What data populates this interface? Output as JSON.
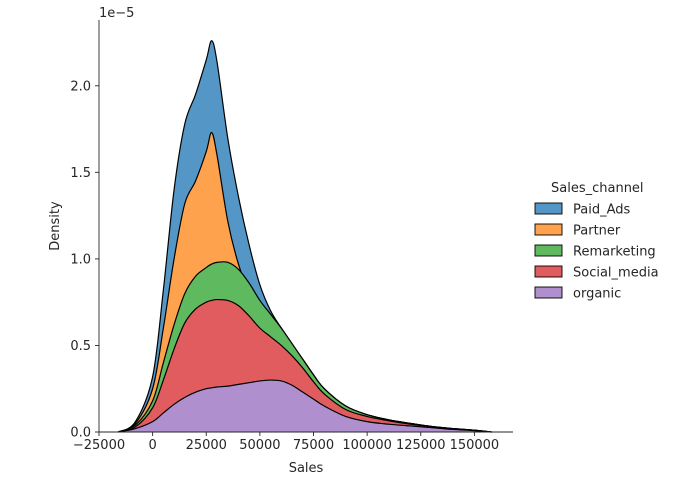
{
  "chart_data": {
    "type": "area",
    "stacked": true,
    "title": "",
    "xlabel": "Sales",
    "ylabel": "Density",
    "y_offset_label": "1e−5",
    "xlim": [
      -25000,
      168000
    ],
    "ylim": [
      0,
      2.38
    ],
    "xticks": [
      -25000,
      0,
      25000,
      50000,
      75000,
      100000,
      125000,
      150000
    ],
    "xtick_labels": [
      "−25000",
      "0",
      "25000",
      "50000",
      "75000",
      "100000",
      "125000",
      "150000"
    ],
    "yticks": [
      0.0,
      0.5,
      1.0,
      1.5,
      2.0
    ],
    "ytick_labels": [
      "0.0",
      "0.5",
      "1.0",
      "1.5",
      "2.0"
    ],
    "grid": false,
    "legend": {
      "title": "Sales_channel",
      "placement": "center-right",
      "entries": [
        "Paid_Ads",
        "Partner",
        "Remarketing",
        "Social_media",
        "organic"
      ]
    },
    "x": [
      -16000,
      -8000,
      0,
      5000,
      10000,
      15000,
      20000,
      25000,
      27500,
      30000,
      35000,
      40000,
      45000,
      50000,
      55000,
      60000,
      65000,
      70000,
      75000,
      80000,
      90000,
      100000,
      110000,
      120000,
      130000,
      140000,
      150000,
      158000
    ],
    "series": [
      {
        "name": "organic",
        "color": "#b08fcf",
        "cumulative": [
          0.0,
          0.02,
          0.06,
          0.11,
          0.16,
          0.2,
          0.23,
          0.25,
          0.255,
          0.26,
          0.265,
          0.275,
          0.285,
          0.295,
          0.3,
          0.295,
          0.27,
          0.23,
          0.19,
          0.15,
          0.09,
          0.06,
          0.045,
          0.035,
          0.025,
          0.015,
          0.008,
          0.0
        ]
      },
      {
        "name": "Social_media",
        "color": "#e05c5e",
        "cumulative": [
          0.0,
          0.03,
          0.14,
          0.3,
          0.48,
          0.63,
          0.71,
          0.75,
          0.76,
          0.765,
          0.76,
          0.73,
          0.67,
          0.6,
          0.55,
          0.5,
          0.44,
          0.37,
          0.29,
          0.22,
          0.13,
          0.09,
          0.065,
          0.045,
          0.03,
          0.018,
          0.01,
          0.0
        ]
      },
      {
        "name": "Remarketing",
        "color": "#5fb95f",
        "cumulative": [
          0.0,
          0.04,
          0.18,
          0.4,
          0.62,
          0.8,
          0.9,
          0.95,
          0.97,
          0.98,
          0.98,
          0.94,
          0.86,
          0.76,
          0.68,
          0.6,
          0.51,
          0.42,
          0.33,
          0.25,
          0.15,
          0.1,
          0.07,
          0.05,
          0.032,
          0.02,
          0.01,
          0.0
        ]
      },
      {
        "name": "Partner",
        "color": "#ffa24d",
        "cumulative": [
          0.0,
          0.05,
          0.25,
          0.6,
          1.0,
          1.32,
          1.45,
          1.62,
          1.73,
          1.6,
          1.22,
          0.97,
          0.81,
          0.7,
          0.63,
          0.57,
          0.5,
          0.42,
          0.33,
          0.25,
          0.15,
          0.1,
          0.07,
          0.05,
          0.032,
          0.02,
          0.01,
          0.0
        ]
      },
      {
        "name": "Paid_Ads",
        "color": "#5497c6",
        "cumulative": [
          0.0,
          0.06,
          0.32,
          0.82,
          1.4,
          1.78,
          1.95,
          2.15,
          2.26,
          2.14,
          1.7,
          1.36,
          1.08,
          0.85,
          0.7,
          0.6,
          0.51,
          0.42,
          0.33,
          0.25,
          0.15,
          0.1,
          0.07,
          0.05,
          0.032,
          0.02,
          0.01,
          0.0
        ]
      }
    ]
  }
}
